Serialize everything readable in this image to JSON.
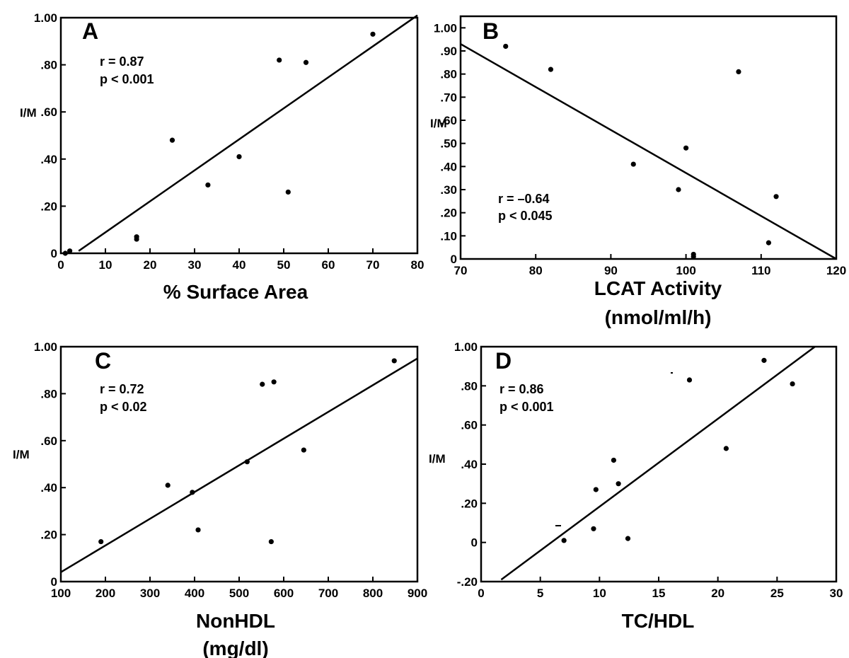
{
  "chart_data": [
    {
      "type": "scatter",
      "panel": "A",
      "xlabel": "% Surface Area",
      "xlabel2": "",
      "ylabel": "I/M",
      "stat_r": "r =  0.87",
      "stat_p": "p < 0.001",
      "xlim": [
        0,
        80
      ],
      "ylim": [
        0,
        1.0
      ],
      "xticks": [
        0,
        10,
        20,
        30,
        40,
        50,
        60,
        70,
        80
      ],
      "xtick_labels": [
        "0",
        "10",
        "20",
        "30",
        "40",
        "50",
        "60",
        "70",
        "80"
      ],
      "yticks": [
        0,
        0.2,
        0.4,
        0.6,
        0.8,
        1.0
      ],
      "ytick_labels": [
        "0",
        ".20",
        ".40",
        ".60",
        ".80",
        "1.00"
      ],
      "points": [
        [
          1.0,
          0.0
        ],
        [
          2.0,
          0.01
        ],
        [
          17.0,
          0.07
        ],
        [
          17.0,
          0.06
        ],
        [
          25.0,
          0.48
        ],
        [
          33.0,
          0.29
        ],
        [
          40.0,
          0.41
        ],
        [
          49.0,
          0.82
        ],
        [
          51.0,
          0.26
        ],
        [
          55.0,
          0.81
        ],
        [
          70.0,
          0.93
        ]
      ],
      "fit": [
        [
          4.0,
          0.01
        ],
        [
          80.0,
          1.01
        ]
      ]
    },
    {
      "type": "scatter",
      "panel": "B",
      "xlabel": "LCAT Activity",
      "xlabel2": "(nmol/ml/h)",
      "ylabel": "I/M",
      "stat_r": "r =  –0.64",
      "stat_p": "p < 0.045",
      "xlim": [
        70,
        120
      ],
      "ylim": [
        0,
        1.05
      ],
      "xticks": [
        70,
        80,
        90,
        100,
        110,
        120
      ],
      "xtick_labels": [
        "70",
        "80",
        "90",
        "100",
        "110",
        "120"
      ],
      "yticks": [
        0,
        0.1,
        0.2,
        0.3,
        0.4,
        0.5,
        0.6,
        0.7,
        0.8,
        0.9,
        1.0
      ],
      "ytick_labels": [
        "0",
        ".10",
        ".20",
        ".30",
        ".40",
        ".50",
        ".60",
        ".70",
        ".80",
        ".90",
        "1.00"
      ],
      "points": [
        [
          76.0,
          0.92
        ],
        [
          82.0,
          0.82
        ],
        [
          93.0,
          0.41
        ],
        [
          99.0,
          0.3
        ],
        [
          100.0,
          0.48
        ],
        [
          101.0,
          0.02
        ],
        [
          101.0,
          0.01
        ],
        [
          107.0,
          0.81
        ],
        [
          111.0,
          0.07
        ],
        [
          112.0,
          0.27
        ]
      ],
      "fit": [
        [
          70.0,
          0.93
        ],
        [
          120.0,
          0.0
        ]
      ]
    },
    {
      "type": "scatter",
      "panel": "C",
      "xlabel": "NonHDL",
      "xlabel2": "(mg/dl)",
      "ylabel": "I/M",
      "stat_r": "r =  0.72",
      "stat_p": "p < 0.02",
      "xlim": [
        100,
        900
      ],
      "ylim": [
        0,
        1.0
      ],
      "xticks": [
        100,
        200,
        300,
        400,
        500,
        600,
        700,
        800,
        900
      ],
      "xtick_labels": [
        "100",
        "200",
        "300",
        "400",
        "500",
        "600",
        "700",
        "800",
        "900"
      ],
      "yticks": [
        0,
        0.2,
        0.4,
        0.6,
        0.8,
        1.0
      ],
      "ytick_labels": [
        "0",
        ".20",
        ".40",
        ".60",
        ".80",
        "1.00"
      ],
      "points": [
        [
          190.0,
          0.17
        ],
        [
          340.0,
          0.41
        ],
        [
          395.0,
          0.38
        ],
        [
          408.0,
          0.22
        ],
        [
          518.0,
          0.51
        ],
        [
          552.0,
          0.84
        ],
        [
          572.0,
          0.17
        ],
        [
          578.0,
          0.85
        ],
        [
          645.0,
          0.56
        ],
        [
          848.0,
          0.94
        ]
      ],
      "fit": [
        [
          100.0,
          0.04
        ],
        [
          900.0,
          0.95
        ]
      ]
    },
    {
      "type": "scatter",
      "panel": "D",
      "xlabel": "TC/HDL",
      "xlabel2": "",
      "ylabel": "I/M",
      "stat_r": "r =  0.86",
      "stat_p": "p < 0.001",
      "xlim": [
        0,
        30
      ],
      "ylim": [
        -0.2,
        1.0
      ],
      "xticks": [
        0,
        5,
        10,
        15,
        20,
        25,
        30
      ],
      "xtick_labels": [
        "0",
        "5",
        "10",
        "15",
        "20",
        "25",
        "30"
      ],
      "yticks": [
        -0.2,
        0,
        0.2,
        0.4,
        0.6,
        0.8,
        1.0
      ],
      "ytick_labels": [
        "-.20",
        "0",
        ".20",
        ".40",
        ".60",
        ".80",
        "1.00"
      ],
      "points": [
        [
          7.0,
          0.01
        ],
        [
          9.5,
          0.07
        ],
        [
          9.7,
          0.27
        ],
        [
          11.2,
          0.42
        ],
        [
          11.6,
          0.3
        ],
        [
          12.4,
          0.02
        ],
        [
          17.6,
          0.83
        ],
        [
          20.7,
          0.48
        ],
        [
          23.9,
          0.93
        ],
        [
          26.3,
          0.81
        ]
      ],
      "fit": [
        [
          1.7,
          -0.19
        ],
        [
          28.2,
          1.0
        ]
      ]
    }
  ]
}
